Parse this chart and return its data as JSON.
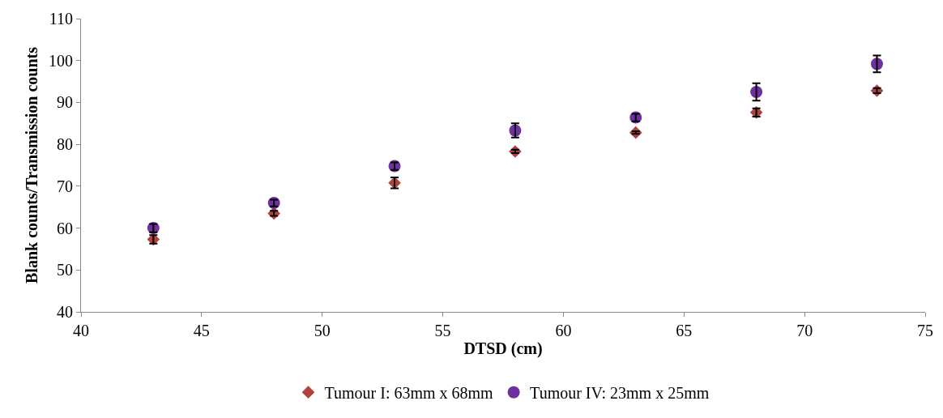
{
  "chart_data": {
    "type": "scatter",
    "xlabel": "DTSD (cm)",
    "ylabel": "Blank counts/Transmission counts",
    "x": [
      43,
      48,
      53,
      58,
      63,
      68,
      73
    ],
    "series": [
      {
        "name": "Tumour I: 63mm x 68mm",
        "color": "#b0413e",
        "marker": "diamond",
        "values": [
          57.3,
          63.5,
          70.8,
          78.3,
          82.8,
          87.6,
          92.8
        ],
        "errors": [
          1.0,
          0.6,
          1.3,
          0.4,
          0.3,
          1.0,
          0.6
        ]
      },
      {
        "name": "Tumour IV: 23mm x 25mm",
        "color": "#7030a0",
        "marker": "circle",
        "values": [
          60.0,
          66.0,
          74.8,
          83.3,
          86.4,
          92.5,
          99.2
        ],
        "errors": [
          1.0,
          0.8,
          0.9,
          1.7,
          0.9,
          2.1,
          2.0
        ]
      }
    ],
    "xlim": [
      40,
      75
    ],
    "xticks": [
      40,
      45,
      50,
      55,
      60,
      65,
      70,
      75
    ],
    "ylim": [
      40,
      110
    ],
    "yticks": [
      40,
      50,
      60,
      70,
      80,
      90,
      100,
      110
    ],
    "legend": "bottom"
  }
}
